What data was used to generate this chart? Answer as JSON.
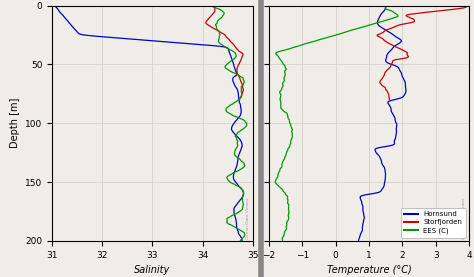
{
  "ylabel": "Depth [m]",
  "sal_xlabel": "Salinity",
  "temp_xlabel": "Temperature (°C)",
  "ylim": [
    200,
    0
  ],
  "sal_xlim": [
    31,
    35
  ],
  "temp_xlim": [
    -2,
    4
  ],
  "sal_xticks": [
    31,
    32,
    33,
    34,
    35
  ],
  "temp_xticks": [
    -2,
    -1,
    0,
    1,
    2,
    3,
    4
  ],
  "yticks": [
    0,
    50,
    100,
    150,
    200
  ],
  "colors": {
    "Hornsund": "#0000cc",
    "Storfjorden": "#cc0000",
    "EES (C)": "#009900"
  },
  "legend_labels": [
    "Hornsund",
    "Storfjorden",
    "EES (C)"
  ],
  "bg_color": "#f0ede8",
  "grid_color": "#cccccc",
  "linewidth": 0.9
}
